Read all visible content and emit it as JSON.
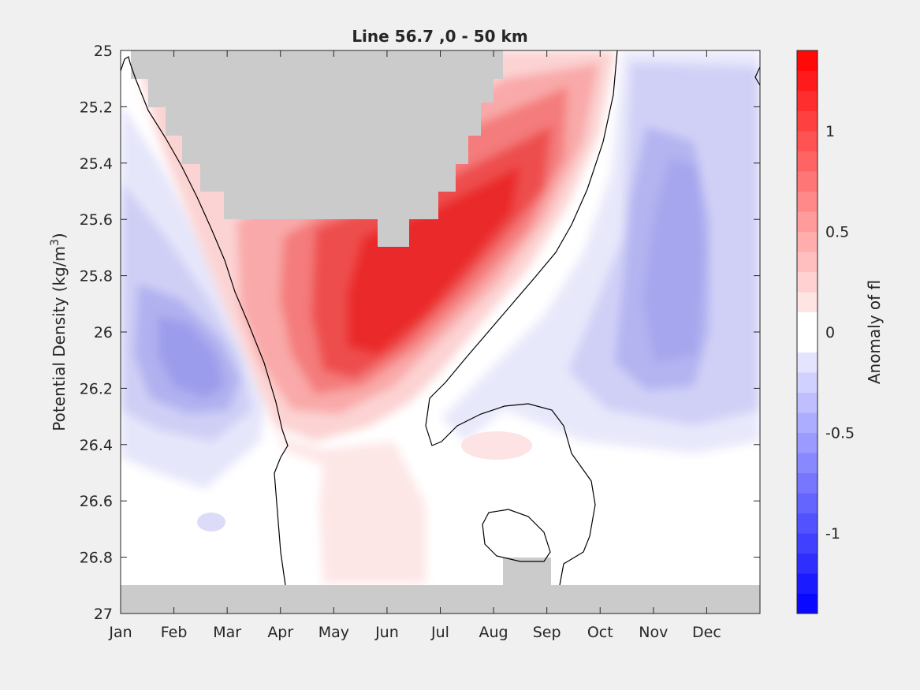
{
  "chart_data": {
    "type": "heatmap",
    "title": "Line 56.7 ,0 - 50 km",
    "ylabel_prefix": "Potential Density (kg/m",
    "ylabel_sup": "3",
    "ylabel_suffix": ")",
    "colorbar_label": "Anomaly of fl",
    "x_categories": [
      "Jan",
      "Feb",
      "Mar",
      "Apr",
      "May",
      "Jun",
      "Jul",
      "Aug",
      "Sep",
      "Oct",
      "Nov",
      "Dec"
    ],
    "y_ticks": [
      "25",
      "25.2",
      "25.4",
      "25.6",
      "25.8",
      "26",
      "26.2",
      "26.4",
      "26.6",
      "26.8",
      "27"
    ],
    "ylim": [
      25,
      27
    ],
    "y_reversed": true,
    "colorbar": {
      "clim": [
        -1.4,
        1.4
      ],
      "step": 0.1,
      "tick_labels": [
        "1",
        "0.5",
        "0",
        "-0.5",
        "-1"
      ],
      "tick_values": [
        1,
        0.5,
        0,
        -0.5,
        -1
      ],
      "colormap": "blue-white-red"
    },
    "anomaly_features": [
      {
        "name": "positive band",
        "month_range": [
          "Mar",
          "Sep"
        ],
        "density_range": [
          25.0,
          26.3
        ],
        "max_value": 1.35
      },
      {
        "name": "winter negative core",
        "month_range": [
          "Jan",
          "Mar"
        ],
        "density_range": [
          25.8,
          26.3
        ],
        "min_value": -0.6
      },
      {
        "name": "autumn negative core",
        "month_range": [
          "Oct",
          "Dec"
        ],
        "density_range": [
          25.2,
          26.2
        ],
        "min_value": -0.5
      },
      {
        "name": "no data (bottom)",
        "density_range": [
          26.9,
          27.0
        ]
      },
      {
        "name": "no data (top)",
        "month_range": [
          "Jan",
          "Aug"
        ],
        "density_range": [
          25.0,
          25.6
        ]
      }
    ]
  }
}
